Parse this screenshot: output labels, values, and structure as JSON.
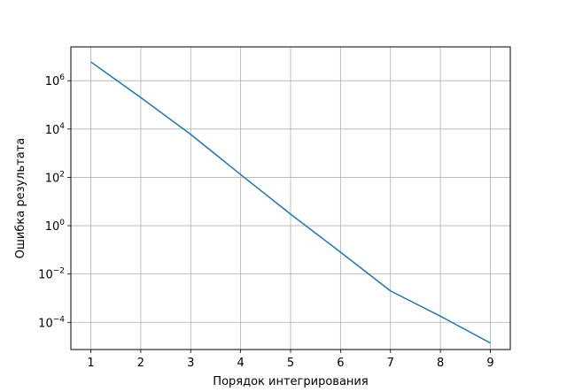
{
  "chart_data": {
    "type": "line",
    "title": "",
    "xlabel": "Порядок интегрирования",
    "ylabel": "Ошибка результата",
    "x": [
      1,
      2,
      3,
      4,
      5,
      6,
      7,
      8,
      9
    ],
    "series": [
      {
        "values": [
          6000000,
          200000,
          6000,
          130,
          3,
          0.08,
          0.002,
          0.00018,
          1.4e-05
        ],
        "color": "#1f77b4"
      }
    ],
    "xlim": [
      0.6,
      9.4
    ],
    "ylim": [
      7.5e-06,
      25000000
    ],
    "yscale": "log",
    "x_ticks": [
      1,
      2,
      3,
      4,
      5,
      6,
      7,
      8,
      9
    ],
    "x_tick_labels": [
      "1",
      "2",
      "3",
      "4",
      "5",
      "6",
      "7",
      "8",
      "9"
    ],
    "y_ticks": [
      0.0001,
      0.01,
      1,
      100,
      10000,
      1000000
    ],
    "y_tick_labels": [
      {
        "base": "10",
        "exp": "−4"
      },
      {
        "base": "10",
        "exp": "−2"
      },
      {
        "base": "10",
        "exp": "0"
      },
      {
        "base": "10",
        "exp": "2"
      },
      {
        "base": "10",
        "exp": "4"
      },
      {
        "base": "10",
        "exp": "6"
      }
    ],
    "grid": true,
    "grid_color": "#b0b0b0",
    "legend": "none"
  }
}
